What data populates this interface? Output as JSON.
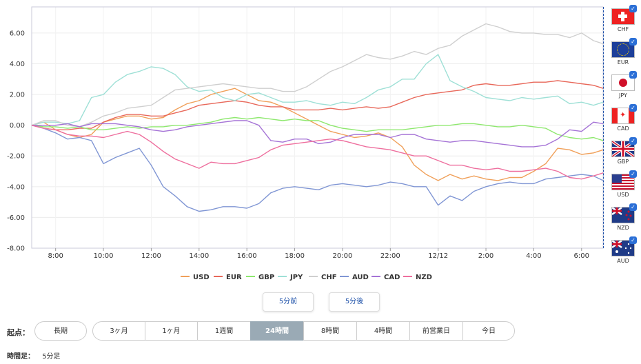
{
  "chart_data": {
    "type": "line",
    "title": "",
    "xlabel": "",
    "ylabel": "",
    "ylim": [
      -8,
      7.7
    ],
    "yticks": [
      6,
      4,
      2,
      0,
      -2,
      -4,
      -6,
      -8
    ],
    "ytick_labels": [
      "6.00",
      "4.00",
      "2.00",
      "0.00",
      "-2.00",
      "-4.00",
      "-6.00",
      "-8.00"
    ],
    "xticks": [
      {
        "t": 1,
        "label": "8:00"
      },
      {
        "t": 3,
        "label": "10:00"
      },
      {
        "t": 5,
        "label": "12:00"
      },
      {
        "t": 7,
        "label": "14:00"
      },
      {
        "t": 9,
        "label": "16:00"
      },
      {
        "t": 11,
        "label": "18:00"
      },
      {
        "t": 13,
        "label": "20:00"
      },
      {
        "t": 15,
        "label": "22:00"
      },
      {
        "t": 17,
        "label": "12/12"
      },
      {
        "t": 19,
        "label": "2:00"
      },
      {
        "t": 21,
        "label": "4:00"
      },
      {
        "t": 23,
        "label": "6:00"
      }
    ],
    "xlim": [
      0,
      23.9
    ],
    "x": [
      0,
      0.5,
      1,
      1.5,
      2,
      2.5,
      3,
      3.5,
      4,
      4.5,
      5,
      5.5,
      6,
      6.5,
      7,
      7.5,
      8,
      8.5,
      9,
      9.5,
      10,
      10.5,
      11,
      11.5,
      12,
      12.5,
      13,
      13.5,
      14,
      14.5,
      15,
      15.5,
      16,
      16.5,
      17,
      17.5,
      18,
      18.5,
      19,
      19.5,
      20,
      20.5,
      21,
      21.5,
      22,
      22.5,
      23,
      23.5,
      23.9
    ],
    "series": [
      {
        "name": "USD",
        "color": "#f0a05a",
        "values": [
          0.0,
          0.2,
          -0.3,
          -0.6,
          -0.8,
          -0.6,
          0.2,
          0.4,
          0.6,
          0.6,
          0.4,
          0.5,
          1.0,
          1.4,
          1.6,
          2.0,
          2.2,
          2.4,
          2.0,
          1.6,
          1.5,
          1.2,
          0.8,
          0.4,
          0.0,
          -0.4,
          -0.6,
          -0.8,
          -0.7,
          -0.5,
          -0.8,
          -1.4,
          -2.6,
          -3.2,
          -3.6,
          -3.2,
          -3.5,
          -3.3,
          -3.5,
          -3.6,
          -3.4,
          -3.4,
          -3.0,
          -2.5,
          -1.5,
          -1.6,
          -1.9,
          -1.8,
          -1.6
        ]
      },
      {
        "name": "EUR",
        "color": "#e8685a",
        "values": [
          0.0,
          -0.2,
          -0.3,
          -0.3,
          -0.2,
          -0.2,
          0.2,
          0.5,
          0.7,
          0.7,
          0.6,
          0.6,
          0.8,
          1.0,
          1.3,
          1.4,
          1.5,
          1.6,
          1.5,
          1.3,
          1.2,
          1.2,
          1.0,
          1.0,
          1.0,
          1.1,
          1.0,
          1.1,
          1.2,
          1.1,
          1.2,
          1.5,
          1.8,
          2.0,
          2.1,
          2.2,
          2.3,
          2.6,
          2.7,
          2.6,
          2.6,
          2.7,
          2.8,
          2.8,
          2.9,
          2.8,
          2.7,
          2.6,
          2.4
        ]
      },
      {
        "name": "GBP",
        "color": "#8ee86e",
        "values": [
          0.0,
          -0.1,
          -0.1,
          -0.2,
          -0.1,
          -0.3,
          -0.3,
          -0.2,
          -0.1,
          -0.2,
          -0.1,
          -0.1,
          0.0,
          0.0,
          0.1,
          0.2,
          0.4,
          0.5,
          0.4,
          0.5,
          0.4,
          0.3,
          0.4,
          0.3,
          0.3,
          0.0,
          -0.2,
          -0.3,
          -0.4,
          -0.3,
          -0.3,
          -0.3,
          -0.2,
          -0.1,
          0.0,
          0.0,
          0.1,
          0.1,
          0.0,
          -0.1,
          -0.1,
          0.0,
          -0.1,
          -0.2,
          -0.6,
          -0.8,
          -0.9,
          -0.8,
          -1.0
        ]
      },
      {
        "name": "JPY",
        "color": "#9ee0d6",
        "values": [
          0.0,
          0.2,
          0.2,
          0.1,
          0.3,
          1.8,
          2.0,
          2.8,
          3.3,
          3.5,
          3.8,
          3.7,
          3.3,
          2.5,
          2.2,
          2.3,
          1.8,
          1.6,
          2.0,
          2.1,
          1.8,
          1.5,
          1.5,
          1.6,
          1.4,
          1.3,
          1.5,
          1.4,
          1.8,
          2.3,
          2.5,
          3.0,
          3.0,
          4.0,
          4.6,
          2.9,
          2.5,
          2.2,
          1.8,
          1.7,
          1.6,
          1.8,
          1.7,
          1.8,
          1.9,
          1.4,
          1.5,
          1.3,
          1.5
        ]
      },
      {
        "name": "CHF",
        "color": "#cfcfcf",
        "values": [
          0.0,
          0.3,
          0.3,
          0.0,
          -0.1,
          0.2,
          0.6,
          0.8,
          1.1,
          1.2,
          1.3,
          1.8,
          2.3,
          2.4,
          2.5,
          2.6,
          2.7,
          2.6,
          2.5,
          2.4,
          2.4,
          2.2,
          2.2,
          2.5,
          3.0,
          3.5,
          3.8,
          4.2,
          4.6,
          4.4,
          4.3,
          4.5,
          4.8,
          4.6,
          5.0,
          5.2,
          5.8,
          6.2,
          6.6,
          6.4,
          6.1,
          6.0,
          6.0,
          5.9,
          5.9,
          5.7,
          6.0,
          5.5,
          5.3
        ]
      },
      {
        "name": "AUD",
        "color": "#8096d4",
        "values": [
          0.0,
          -0.2,
          -0.5,
          -0.9,
          -0.8,
          -1.0,
          -2.5,
          -2.1,
          -1.8,
          -1.5,
          -2.6,
          -4.0,
          -4.6,
          -5.3,
          -5.6,
          -5.5,
          -5.3,
          -5.3,
          -5.4,
          -5.1,
          -4.4,
          -4.1,
          -4.0,
          -4.1,
          -4.2,
          -3.9,
          -3.8,
          -3.9,
          -4.0,
          -3.9,
          -3.7,
          -3.8,
          -4.0,
          -4.0,
          -5.2,
          -4.6,
          -4.9,
          -4.3,
          -4.0,
          -3.8,
          -3.7,
          -3.8,
          -3.8,
          -3.5,
          -3.4,
          -3.3,
          -3.2,
          -3.3,
          -3.6
        ]
      },
      {
        "name": "CAD",
        "color": "#a573d6",
        "values": [
          0.0,
          0.0,
          0.0,
          0.1,
          -0.1,
          0.1,
          0.1,
          0.1,
          0.0,
          -0.1,
          -0.3,
          -0.4,
          -0.3,
          -0.1,
          0.0,
          0.1,
          0.2,
          0.3,
          0.3,
          0.0,
          -1.0,
          -1.1,
          -0.9,
          -0.9,
          -1.2,
          -1.1,
          -0.8,
          -0.6,
          -0.6,
          -0.6,
          -0.8,
          -0.6,
          -0.6,
          -0.9,
          -1.0,
          -1.1,
          -1.0,
          -1.0,
          -1.1,
          -1.2,
          -1.3,
          -1.4,
          -1.4,
          -1.3,
          -0.9,
          -0.3,
          -0.4,
          0.2,
          0.1
        ]
      },
      {
        "name": "NZD",
        "color": "#ee6f9e",
        "values": [
          0.0,
          -0.2,
          -0.3,
          -0.6,
          -0.7,
          -0.7,
          -0.8,
          -0.6,
          -0.4,
          -0.6,
          -1.1,
          -1.7,
          -2.2,
          -2.5,
          -2.8,
          -2.4,
          -2.5,
          -2.5,
          -2.3,
          -2.1,
          -1.6,
          -1.3,
          -1.2,
          -1.1,
          -1.0,
          -0.9,
          -1.0,
          -1.2,
          -1.4,
          -1.5,
          -1.6,
          -1.8,
          -2.0,
          -2.0,
          -2.3,
          -2.6,
          -2.6,
          -2.8,
          -2.9,
          -2.8,
          -3.0,
          -3.0,
          -2.9,
          -2.8,
          -3.0,
          -3.4,
          -3.5,
          -3.3,
          -3.1
        ]
      }
    ]
  },
  "flags": [
    {
      "code": "CHF"
    },
    {
      "code": "EUR"
    },
    {
      "code": "JPY"
    },
    {
      "code": "CAD"
    },
    {
      "code": "GBP"
    },
    {
      "code": "USD"
    },
    {
      "code": "NZD"
    },
    {
      "code": "AUD"
    }
  ],
  "nav": {
    "prev": "5分前",
    "next": "5分後"
  },
  "controls": {
    "start_label": "起点：",
    "ranges": [
      "長期",
      "3ヶ月",
      "1ヶ月",
      "1週間",
      "24時間",
      "8時間",
      "4時間",
      "前営業日",
      "今日"
    ],
    "active_range": "24時間",
    "interval_label": "時間足：",
    "interval_value": "5分足"
  }
}
